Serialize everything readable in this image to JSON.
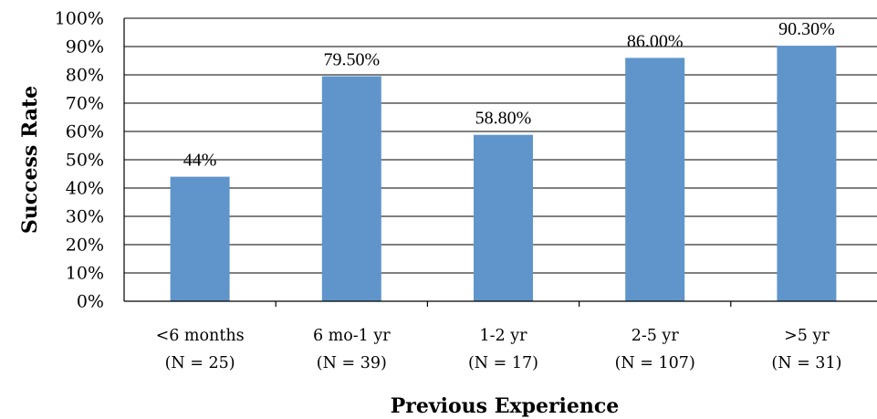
{
  "chart_data": {
    "type": "bar",
    "categories": [
      [
        "<6 months",
        "(N = 25)"
      ],
      [
        "6 mo-1 yr",
        "(N = 39)"
      ],
      [
        "1-2 yr",
        "(N = 17)"
      ],
      [
        "2-5 yr",
        "(N = 107)"
      ],
      [
        ">5 yr",
        "(N = 31)"
      ]
    ],
    "values": [
      44,
      79.5,
      58.8,
      86.0,
      90.3
    ],
    "data_labels": [
      "44%",
      "79.50%",
      "58.80%",
      "86.00%",
      "90.30%"
    ],
    "xlabel": "Previous Experience",
    "ylabel": "Success Rate",
    "ylim": [
      0,
      100
    ],
    "yticks": [
      "0%",
      "10%",
      "20%",
      "30%",
      "40%",
      "50%",
      "60%",
      "70%",
      "80%",
      "90%",
      "100%"
    ],
    "grid": true,
    "bar_color": "#5f95cb"
  }
}
